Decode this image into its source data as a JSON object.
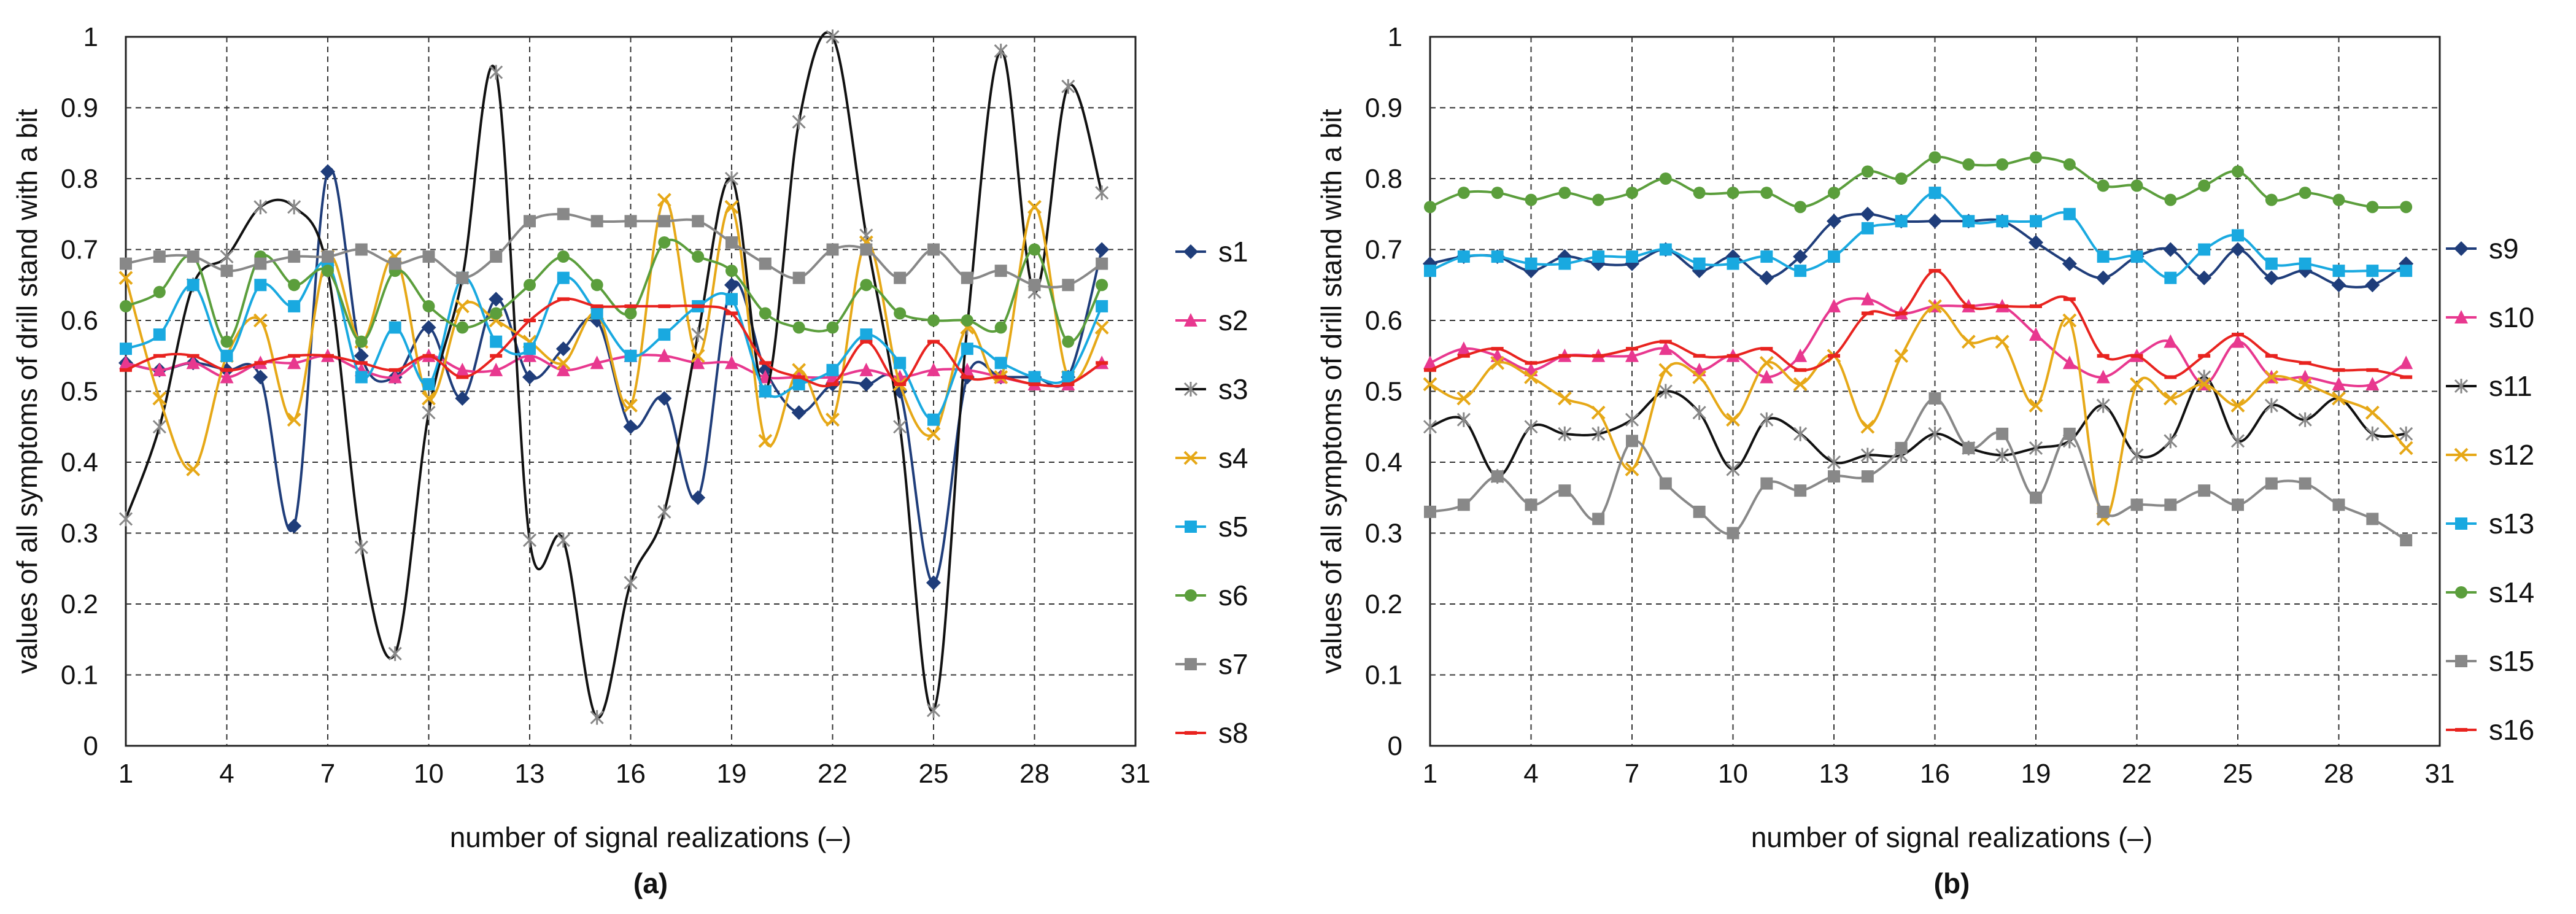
{
  "chart_data": [
    {
      "type": "line",
      "panel_label": "(a)",
      "xlabel": "number of signal realizations (–)",
      "ylabel": "values of all symptoms of drill stand with a bit",
      "xlim": [
        1,
        31
      ],
      "ylim": [
        0,
        1
      ],
      "xticks": [
        1,
        4,
        7,
        10,
        13,
        16,
        19,
        22,
        25,
        28,
        31
      ],
      "yticks": [
        0,
        0.1,
        0.2,
        0.3,
        0.4,
        0.5,
        0.6,
        0.7,
        0.8,
        0.9,
        1
      ],
      "grid": true,
      "legend": "right",
      "x": [
        1,
        2,
        3,
        4,
        5,
        6,
        7,
        8,
        9,
        10,
        11,
        12,
        13,
        14,
        15,
        16,
        17,
        18,
        19,
        20,
        21,
        22,
        23,
        24,
        25,
        26,
        27,
        28,
        29,
        30
      ],
      "series": [
        {
          "name": "s1",
          "color": "#1f3d7a",
          "marker": "diamond",
          "values": [
            0.54,
            0.53,
            0.54,
            0.53,
            0.52,
            0.31,
            0.81,
            0.55,
            0.52,
            0.59,
            0.49,
            0.63,
            0.52,
            0.56,
            0.6,
            0.45,
            0.49,
            0.35,
            0.65,
            0.53,
            0.47,
            0.51,
            0.51,
            0.5,
            0.23,
            0.52,
            0.52,
            0.52,
            0.52,
            0.7
          ]
        },
        {
          "name": "s2",
          "color": "#e8388f",
          "marker": "triangle",
          "values": [
            0.54,
            0.53,
            0.54,
            0.52,
            0.54,
            0.54,
            0.55,
            0.53,
            0.52,
            0.55,
            0.53,
            0.53,
            0.55,
            0.53,
            0.54,
            0.55,
            0.55,
            0.54,
            0.54,
            0.52,
            0.52,
            0.52,
            0.53,
            0.52,
            0.53,
            0.53,
            0.52,
            0.51,
            0.51,
            0.54
          ]
        },
        {
          "name": "s3",
          "color": "#111111",
          "marker": "star",
          "values": [
            0.32,
            0.45,
            0.65,
            0.69,
            0.76,
            0.76,
            0.67,
            0.28,
            0.13,
            0.47,
            0.66,
            0.95,
            0.29,
            0.29,
            0.04,
            0.23,
            0.33,
            0.58,
            0.8,
            0.5,
            0.88,
            1.0,
            0.72,
            0.45,
            0.05,
            0.59,
            0.98,
            0.64,
            0.93,
            0.78
          ]
        },
        {
          "name": "s4",
          "color": "#e6a817",
          "marker": "x",
          "values": [
            0.66,
            0.49,
            0.39,
            0.55,
            0.6,
            0.46,
            0.69,
            0.57,
            0.69,
            0.49,
            0.62,
            0.6,
            0.57,
            0.54,
            0.61,
            0.48,
            0.77,
            0.55,
            0.76,
            0.43,
            0.53,
            0.46,
            0.71,
            0.51,
            0.44,
            0.59,
            0.52,
            0.76,
            0.52,
            0.59
          ]
        },
        {
          "name": "s5",
          "color": "#19a9e0",
          "marker": "square",
          "values": [
            0.56,
            0.58,
            0.65,
            0.55,
            0.65,
            0.62,
            0.68,
            0.52,
            0.59,
            0.51,
            0.66,
            0.57,
            0.56,
            0.66,
            0.61,
            0.55,
            0.58,
            0.62,
            0.63,
            0.5,
            0.51,
            0.53,
            0.58,
            0.54,
            0.46,
            0.56,
            0.54,
            0.52,
            0.52,
            0.62
          ]
        },
        {
          "name": "s6",
          "color": "#5b9e3c",
          "marker": "circle",
          "values": [
            0.62,
            0.64,
            0.69,
            0.57,
            0.69,
            0.65,
            0.67,
            0.57,
            0.67,
            0.62,
            0.59,
            0.61,
            0.65,
            0.69,
            0.65,
            0.61,
            0.71,
            0.69,
            0.67,
            0.61,
            0.59,
            0.59,
            0.65,
            0.61,
            0.6,
            0.6,
            0.59,
            0.7,
            0.57,
            0.65
          ]
        },
        {
          "name": "s7",
          "color": "#888888",
          "marker": "square",
          "values": [
            0.68,
            0.69,
            0.69,
            0.67,
            0.68,
            0.69,
            0.69,
            0.7,
            0.68,
            0.69,
            0.66,
            0.69,
            0.74,
            0.75,
            0.74,
            0.74,
            0.74,
            0.74,
            0.71,
            0.68,
            0.66,
            0.7,
            0.7,
            0.66,
            0.7,
            0.66,
            0.67,
            0.65,
            0.65,
            0.68
          ]
        },
        {
          "name": "s8",
          "color": "#e8231f",
          "marker": "dash",
          "values": [
            0.53,
            0.55,
            0.55,
            0.53,
            0.54,
            0.55,
            0.55,
            0.54,
            0.53,
            0.55,
            0.52,
            0.55,
            0.6,
            0.63,
            0.62,
            0.62,
            0.62,
            0.62,
            0.61,
            0.54,
            0.52,
            0.51,
            0.57,
            0.51,
            0.57,
            0.52,
            0.52,
            0.51,
            0.51,
            0.54
          ]
        }
      ]
    },
    {
      "type": "line",
      "panel_label": "(b)",
      "xlabel": "number of signal realizations (–)",
      "ylabel": "values of all symptoms of drill stand with a bit",
      "xlim": [
        1,
        31
      ],
      "ylim": [
        0,
        1
      ],
      "xticks": [
        1,
        4,
        7,
        10,
        13,
        16,
        19,
        22,
        25,
        28,
        31
      ],
      "yticks": [
        0,
        0.1,
        0.2,
        0.3,
        0.4,
        0.5,
        0.6,
        0.7,
        0.8,
        0.9,
        1
      ],
      "grid": true,
      "legend": "right",
      "x": [
        1,
        2,
        3,
        4,
        5,
        6,
        7,
        8,
        9,
        10,
        11,
        12,
        13,
        14,
        15,
        16,
        17,
        18,
        19,
        20,
        21,
        22,
        23,
        24,
        25,
        26,
        27,
        28,
        29,
        30
      ],
      "series": [
        {
          "name": "s9",
          "color": "#1f3d7a",
          "marker": "diamond",
          "values": [
            0.68,
            0.69,
            0.69,
            0.67,
            0.69,
            0.68,
            0.68,
            0.7,
            0.67,
            0.69,
            0.66,
            0.69,
            0.74,
            0.75,
            0.74,
            0.74,
            0.74,
            0.74,
            0.71,
            0.68,
            0.66,
            0.69,
            0.7,
            0.66,
            0.7,
            0.66,
            0.67,
            0.65,
            0.65,
            0.68
          ]
        },
        {
          "name": "s10",
          "color": "#e8388f",
          "marker": "triangle",
          "values": [
            0.54,
            0.56,
            0.55,
            0.53,
            0.55,
            0.55,
            0.55,
            0.56,
            0.53,
            0.55,
            0.52,
            0.55,
            0.62,
            0.63,
            0.61,
            0.62,
            0.62,
            0.62,
            0.58,
            0.54,
            0.52,
            0.55,
            0.57,
            0.51,
            0.57,
            0.52,
            0.52,
            0.51,
            0.51,
            0.54
          ]
        },
        {
          "name": "s11",
          "color": "#111111",
          "marker": "star",
          "values": [
            0.45,
            0.46,
            0.38,
            0.45,
            0.44,
            0.44,
            0.46,
            0.5,
            0.47,
            0.39,
            0.46,
            0.44,
            0.4,
            0.41,
            0.41,
            0.44,
            0.42,
            0.41,
            0.42,
            0.43,
            0.48,
            0.41,
            0.43,
            0.52,
            0.43,
            0.48,
            0.46,
            0.49,
            0.44,
            0.44
          ]
        },
        {
          "name": "s12",
          "color": "#e6a817",
          "marker": "x",
          "values": [
            0.51,
            0.49,
            0.54,
            0.52,
            0.49,
            0.47,
            0.39,
            0.53,
            0.52,
            0.46,
            0.54,
            0.51,
            0.55,
            0.45,
            0.55,
            0.62,
            0.57,
            0.57,
            0.48,
            0.6,
            0.32,
            0.51,
            0.49,
            0.51,
            0.48,
            0.52,
            0.51,
            0.49,
            0.47,
            0.42
          ]
        },
        {
          "name": "s13",
          "color": "#19a9e0",
          "marker": "square",
          "values": [
            0.67,
            0.69,
            0.69,
            0.68,
            0.68,
            0.69,
            0.69,
            0.7,
            0.68,
            0.68,
            0.69,
            0.67,
            0.69,
            0.73,
            0.74,
            0.78,
            0.74,
            0.74,
            0.74,
            0.75,
            0.69,
            0.69,
            0.66,
            0.7,
            0.72,
            0.68,
            0.68,
            0.67,
            0.67,
            0.67
          ]
        },
        {
          "name": "s14",
          "color": "#5b9e3c",
          "marker": "circle",
          "values": [
            0.76,
            0.78,
            0.78,
            0.77,
            0.78,
            0.77,
            0.78,
            0.8,
            0.78,
            0.78,
            0.78,
            0.76,
            0.78,
            0.81,
            0.8,
            0.83,
            0.82,
            0.82,
            0.83,
            0.82,
            0.79,
            0.79,
            0.77,
            0.79,
            0.81,
            0.77,
            0.78,
            0.77,
            0.76,
            0.76
          ]
        },
        {
          "name": "s15",
          "color": "#888888",
          "marker": "square",
          "values": [
            0.33,
            0.34,
            0.38,
            0.34,
            0.36,
            0.32,
            0.43,
            0.37,
            0.33,
            0.3,
            0.37,
            0.36,
            0.38,
            0.38,
            0.42,
            0.49,
            0.42,
            0.44,
            0.35,
            0.44,
            0.33,
            0.34,
            0.34,
            0.36,
            0.34,
            0.37,
            0.37,
            0.34,
            0.32,
            0.29
          ]
        },
        {
          "name": "s16",
          "color": "#e8231f",
          "marker": "dash",
          "values": [
            0.53,
            0.55,
            0.56,
            0.54,
            0.55,
            0.55,
            0.56,
            0.57,
            0.55,
            0.55,
            0.56,
            0.53,
            0.55,
            0.61,
            0.61,
            0.67,
            0.62,
            0.62,
            0.62,
            0.63,
            0.55,
            0.55,
            0.52,
            0.55,
            0.58,
            0.55,
            0.54,
            0.53,
            0.53,
            0.52
          ]
        }
      ]
    }
  ]
}
